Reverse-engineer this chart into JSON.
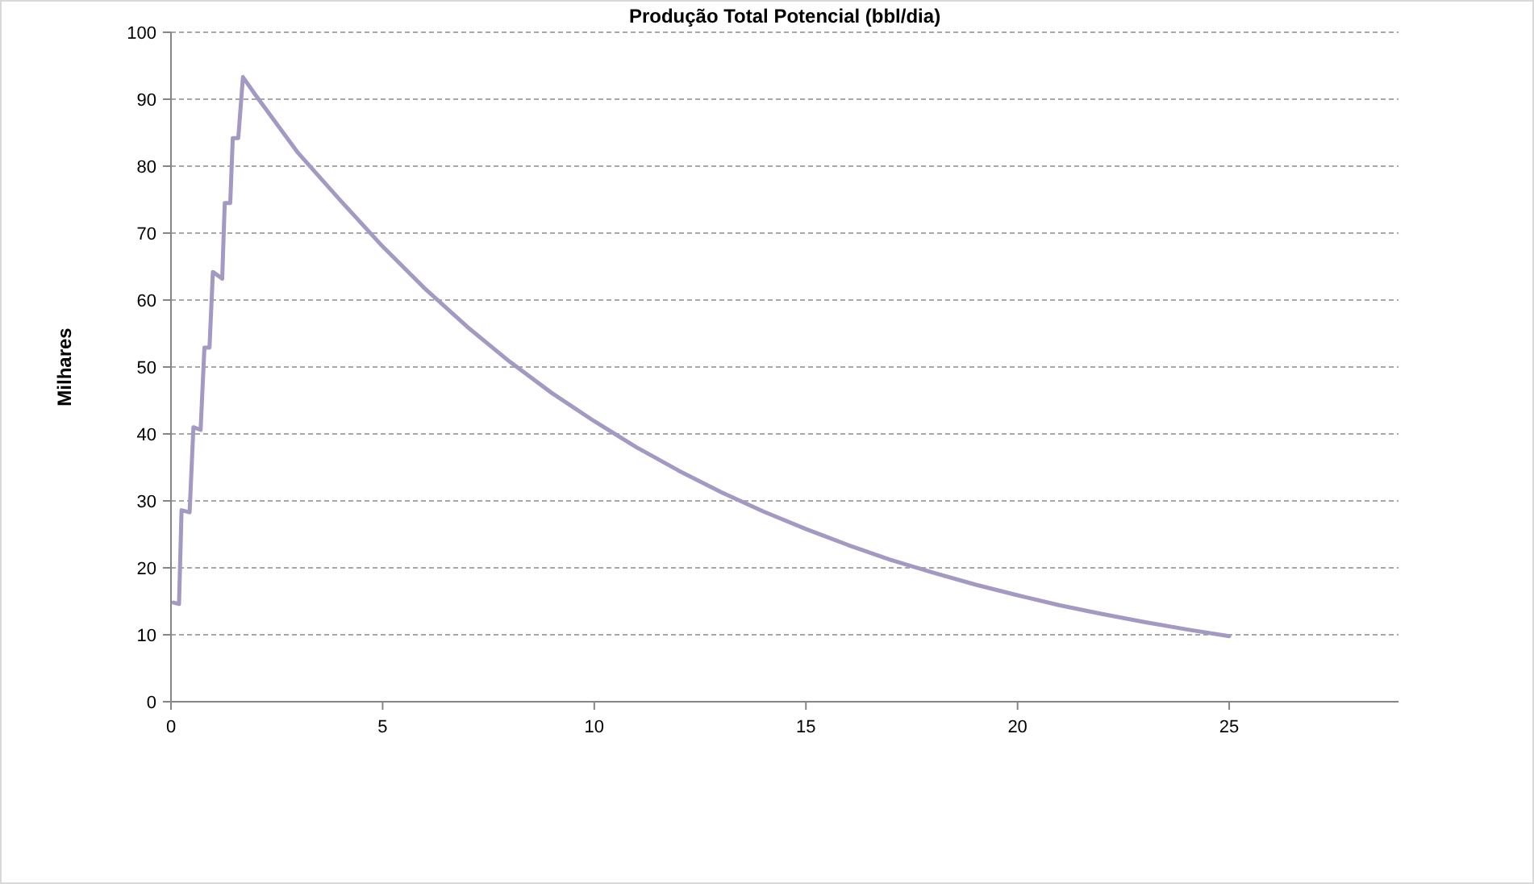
{
  "chart_data": {
    "type": "line",
    "title": "Produção Total Potencial (bbl/dia)",
    "ylabel": "Milhares",
    "x": [
      0.06,
      0.19,
      0.25,
      0.44,
      0.53,
      0.7,
      0.79,
      0.91,
      0.99,
      1.21,
      1.27,
      1.4,
      1.46,
      1.59,
      1.7,
      2,
      3,
      4,
      5,
      6,
      7,
      8,
      9,
      10,
      11,
      12,
      13,
      14,
      15,
      16,
      17,
      18,
      19,
      20,
      21,
      22,
      23,
      24,
      25
    ],
    "series": [
      {
        "color": "#a499c2",
        "values": [
          14.8,
          14.6,
          28.6,
          28.3,
          41,
          40.6,
          52.9,
          52.9,
          64.2,
          63.2,
          74.5,
          74.5,
          84.2,
          84.2,
          93.3,
          90.6,
          82,
          74.9,
          68,
          61.7,
          56,
          50.8,
          46.1,
          41.9,
          38,
          34.5,
          31.3,
          28.4,
          25.8,
          23.4,
          21.2,
          19.3,
          17.5,
          15.9,
          14.4,
          13.1,
          11.9,
          10.8,
          9.8
        ]
      }
    ],
    "xlim": [
      0,
      29
    ],
    "xticks": [
      0,
      5,
      10,
      15,
      20,
      25
    ],
    "ylim": [
      0,
      100
    ],
    "yticks": [
      0,
      10,
      20,
      30,
      40,
      50,
      60,
      70,
      80,
      90,
      100
    ],
    "grid": "y",
    "marker": "none",
    "line_style": "solid"
  }
}
